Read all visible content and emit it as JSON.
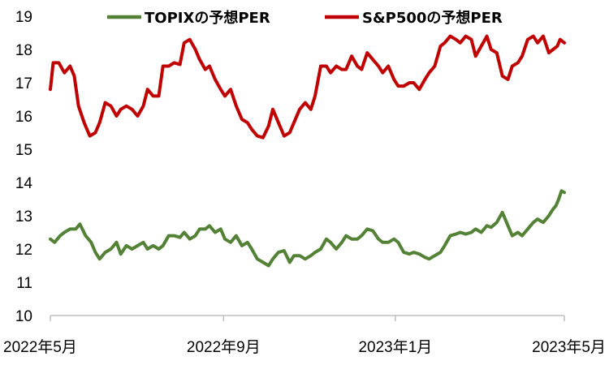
{
  "chart_data": {
    "type": "line",
    "title": "",
    "xlabel": "",
    "ylabel": "",
    "ylim": [
      10,
      19
    ],
    "y_ticks": [
      10,
      11,
      12,
      13,
      14,
      15,
      16,
      17,
      18,
      19
    ],
    "grid": false,
    "legend_position": "top",
    "x_tick_labels": [
      {
        "date": "2022-05-01",
        "label": "2022年5月"
      },
      {
        "date": "2022-09-01",
        "label": "2022年9月"
      },
      {
        "date": "2023-01-01",
        "label": "2023年1月"
      },
      {
        "date": "2023-05-01",
        "label": "2023年5月"
      }
    ],
    "xlim": [
      "2022-05-01",
      "2023-05-01"
    ],
    "series": [
      {
        "name": "TOPIXの予想PER",
        "color": "#538135",
        "points": [
          [
            "2022-05-01",
            12.3
          ],
          [
            "2022-05-04",
            12.2
          ],
          [
            "2022-05-08",
            12.4
          ],
          [
            "2022-05-11",
            12.5
          ],
          [
            "2022-05-15",
            12.6
          ],
          [
            "2022-05-19",
            12.6
          ],
          [
            "2022-05-22",
            12.75
          ],
          [
            "2022-05-26",
            12.4
          ],
          [
            "2022-05-30",
            12.2
          ],
          [
            "2022-06-02",
            11.9
          ],
          [
            "2022-06-05",
            11.7
          ],
          [
            "2022-06-09",
            11.9
          ],
          [
            "2022-06-13",
            12.0
          ],
          [
            "2022-06-17",
            12.2
          ],
          [
            "2022-06-20",
            11.85
          ],
          [
            "2022-06-24",
            12.1
          ],
          [
            "2022-06-28",
            12.0
          ],
          [
            "2022-07-02",
            12.1
          ],
          [
            "2022-07-06",
            12.2
          ],
          [
            "2022-07-09",
            12.0
          ],
          [
            "2022-07-13",
            12.1
          ],
          [
            "2022-07-17",
            12.0
          ],
          [
            "2022-07-20",
            12.1
          ],
          [
            "2022-07-24",
            12.4
          ],
          [
            "2022-07-28",
            12.4
          ],
          [
            "2022-08-01",
            12.35
          ],
          [
            "2022-08-04",
            12.5
          ],
          [
            "2022-08-08",
            12.3
          ],
          [
            "2022-08-12",
            12.4
          ],
          [
            "2022-08-15",
            12.6
          ],
          [
            "2022-08-19",
            12.6
          ],
          [
            "2022-08-22",
            12.7
          ],
          [
            "2022-08-26",
            12.5
          ],
          [
            "2022-08-30",
            12.6
          ],
          [
            "2022-09-02",
            12.3
          ],
          [
            "2022-09-06",
            12.2
          ],
          [
            "2022-09-10",
            12.4
          ],
          [
            "2022-09-14",
            12.1
          ],
          [
            "2022-09-18",
            12.2
          ],
          [
            "2022-09-21",
            12.0
          ],
          [
            "2022-09-25",
            11.7
          ],
          [
            "2022-09-29",
            11.6
          ],
          [
            "2022-10-03",
            11.5
          ],
          [
            "2022-10-06",
            11.7
          ],
          [
            "2022-10-10",
            11.9
          ],
          [
            "2022-10-14",
            11.95
          ],
          [
            "2022-10-18",
            11.6
          ],
          [
            "2022-10-21",
            11.8
          ],
          [
            "2022-10-25",
            11.8
          ],
          [
            "2022-10-29",
            11.7
          ],
          [
            "2022-11-02",
            11.8
          ],
          [
            "2022-11-05",
            11.9
          ],
          [
            "2022-11-09",
            12.0
          ],
          [
            "2022-11-13",
            12.3
          ],
          [
            "2022-11-16",
            12.2
          ],
          [
            "2022-11-20",
            12.0
          ],
          [
            "2022-11-24",
            12.2
          ],
          [
            "2022-11-27",
            12.4
          ],
          [
            "2022-12-01",
            12.3
          ],
          [
            "2022-12-05",
            12.3
          ],
          [
            "2022-12-08",
            12.4
          ],
          [
            "2022-12-12",
            12.6
          ],
          [
            "2022-12-16",
            12.55
          ],
          [
            "2022-12-20",
            12.3
          ],
          [
            "2022-12-23",
            12.2
          ],
          [
            "2022-12-27",
            12.2
          ],
          [
            "2022-12-31",
            12.3
          ],
          [
            "2023-01-03",
            12.2
          ],
          [
            "2023-01-07",
            11.9
          ],
          [
            "2023-01-11",
            11.85
          ],
          [
            "2023-01-14",
            11.9
          ],
          [
            "2023-01-18",
            11.85
          ],
          [
            "2023-01-22",
            11.75
          ],
          [
            "2023-01-25",
            11.7
          ],
          [
            "2023-01-29",
            11.8
          ],
          [
            "2023-02-02",
            11.9
          ],
          [
            "2023-02-05",
            12.1
          ],
          [
            "2023-02-09",
            12.4
          ],
          [
            "2023-02-13",
            12.45
          ],
          [
            "2023-02-16",
            12.5
          ],
          [
            "2023-02-20",
            12.45
          ],
          [
            "2023-02-24",
            12.5
          ],
          [
            "2023-02-27",
            12.6
          ],
          [
            "2023-03-03",
            12.5
          ],
          [
            "2023-03-07",
            12.7
          ],
          [
            "2023-03-10",
            12.65
          ],
          [
            "2023-03-14",
            12.8
          ],
          [
            "2023-03-18",
            13.1
          ],
          [
            "2023-03-22",
            12.7
          ],
          [
            "2023-03-25",
            12.4
          ],
          [
            "2023-03-29",
            12.5
          ],
          [
            "2023-04-01",
            12.4
          ],
          [
            "2023-04-05",
            12.6
          ],
          [
            "2023-04-09",
            12.8
          ],
          [
            "2023-04-12",
            12.9
          ],
          [
            "2023-04-16",
            12.8
          ],
          [
            "2023-04-20",
            13.0
          ],
          [
            "2023-04-23",
            13.2
          ],
          [
            "2023-04-25",
            13.3
          ],
          [
            "2023-04-27",
            13.5
          ],
          [
            "2023-04-29",
            13.75
          ],
          [
            "2023-05-01",
            13.7
          ]
        ]
      },
      {
        "name": "S&P500の予想PER",
        "color": "#c00000",
        "points": [
          [
            "2022-05-01",
            16.8
          ],
          [
            "2022-05-03",
            17.6
          ],
          [
            "2022-05-07",
            17.6
          ],
          [
            "2022-05-11",
            17.3
          ],
          [
            "2022-05-15",
            17.5
          ],
          [
            "2022-05-18",
            17.2
          ],
          [
            "2022-05-21",
            16.3
          ],
          [
            "2022-05-25",
            15.8
          ],
          [
            "2022-05-29",
            15.4
          ],
          [
            "2022-06-02",
            15.5
          ],
          [
            "2022-06-05",
            15.8
          ],
          [
            "2022-06-09",
            16.4
          ],
          [
            "2022-06-13",
            16.3
          ],
          [
            "2022-06-17",
            16.0
          ],
          [
            "2022-06-20",
            16.2
          ],
          [
            "2022-06-24",
            16.3
          ],
          [
            "2022-06-28",
            16.2
          ],
          [
            "2022-07-02",
            16.0
          ],
          [
            "2022-07-06",
            16.3
          ],
          [
            "2022-07-09",
            16.8
          ],
          [
            "2022-07-13",
            16.6
          ],
          [
            "2022-07-17",
            16.6
          ],
          [
            "2022-07-20",
            17.5
          ],
          [
            "2022-07-24",
            17.5
          ],
          [
            "2022-07-28",
            17.6
          ],
          [
            "2022-08-01",
            17.55
          ],
          [
            "2022-08-04",
            18.2
          ],
          [
            "2022-08-08",
            18.3
          ],
          [
            "2022-08-12",
            18.0
          ],
          [
            "2022-08-15",
            17.7
          ],
          [
            "2022-08-19",
            17.4
          ],
          [
            "2022-08-22",
            17.5
          ],
          [
            "2022-08-26",
            17.1
          ],
          [
            "2022-08-30",
            16.8
          ],
          [
            "2022-09-02",
            16.6
          ],
          [
            "2022-09-06",
            16.8
          ],
          [
            "2022-09-10",
            16.3
          ],
          [
            "2022-09-14",
            15.9
          ],
          [
            "2022-09-18",
            15.8
          ],
          [
            "2022-09-21",
            15.6
          ],
          [
            "2022-09-25",
            15.4
          ],
          [
            "2022-09-29",
            15.35
          ],
          [
            "2022-10-03",
            15.7
          ],
          [
            "2022-10-06",
            16.2
          ],
          [
            "2022-10-10",
            15.8
          ],
          [
            "2022-10-14",
            15.4
          ],
          [
            "2022-10-18",
            15.5
          ],
          [
            "2022-10-21",
            15.8
          ],
          [
            "2022-10-25",
            16.2
          ],
          [
            "2022-10-29",
            16.4
          ],
          [
            "2022-11-02",
            16.2
          ],
          [
            "2022-11-05",
            16.6
          ],
          [
            "2022-11-09",
            17.5
          ],
          [
            "2022-11-13",
            17.5
          ],
          [
            "2022-11-16",
            17.3
          ],
          [
            "2022-11-20",
            17.5
          ],
          [
            "2022-11-24",
            17.4
          ],
          [
            "2022-11-27",
            17.4
          ],
          [
            "2022-12-01",
            17.8
          ],
          [
            "2022-12-05",
            17.5
          ],
          [
            "2022-12-08",
            17.4
          ],
          [
            "2022-12-12",
            17.9
          ],
          [
            "2022-12-16",
            17.7
          ],
          [
            "2022-12-20",
            17.5
          ],
          [
            "2022-12-23",
            17.3
          ],
          [
            "2022-12-27",
            17.5
          ],
          [
            "2022-12-31",
            17.1
          ],
          [
            "2023-01-03",
            16.9
          ],
          [
            "2023-01-07",
            16.9
          ],
          [
            "2023-01-11",
            17.0
          ],
          [
            "2023-01-14",
            17.0
          ],
          [
            "2023-01-18",
            16.8
          ],
          [
            "2023-01-22",
            17.1
          ],
          [
            "2023-01-25",
            17.3
          ],
          [
            "2023-01-29",
            17.5
          ],
          [
            "2023-02-02",
            18.1
          ],
          [
            "2023-02-05",
            18.2
          ],
          [
            "2023-02-09",
            18.4
          ],
          [
            "2023-02-13",
            18.3
          ],
          [
            "2023-02-16",
            18.2
          ],
          [
            "2023-02-20",
            18.4
          ],
          [
            "2023-02-24",
            18.3
          ],
          [
            "2023-02-27",
            17.8
          ],
          [
            "2023-03-03",
            18.1
          ],
          [
            "2023-03-07",
            18.4
          ],
          [
            "2023-03-10",
            18.0
          ],
          [
            "2023-03-14",
            17.9
          ],
          [
            "2023-03-18",
            17.2
          ],
          [
            "2023-03-22",
            17.1
          ],
          [
            "2023-03-25",
            17.5
          ],
          [
            "2023-03-29",
            17.6
          ],
          [
            "2023-04-01",
            17.8
          ],
          [
            "2023-04-05",
            18.3
          ],
          [
            "2023-04-09",
            18.4
          ],
          [
            "2023-04-12",
            18.2
          ],
          [
            "2023-04-16",
            18.4
          ],
          [
            "2023-04-20",
            17.9
          ],
          [
            "2023-04-23",
            18.0
          ],
          [
            "2023-04-26",
            18.1
          ],
          [
            "2023-04-28",
            18.3
          ],
          [
            "2023-05-01",
            18.2
          ]
        ]
      }
    ]
  }
}
